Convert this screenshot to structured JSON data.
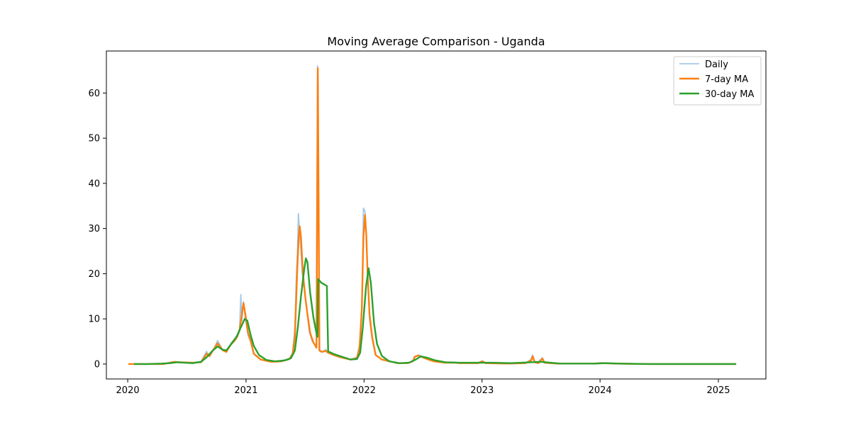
{
  "chart_data": {
    "type": "line",
    "title": "Moving Average Comparison - Uganda",
    "xlabel": "",
    "ylabel": "",
    "x_ticks": [
      "2020",
      "2021",
      "2022",
      "2023",
      "2024",
      "2025"
    ],
    "y_ticks": [
      0,
      10,
      20,
      30,
      40,
      50,
      60
    ],
    "xlim": [
      "2019-10-27",
      "2025-05-28"
    ],
    "ylim": [
      -3.3,
      69.3
    ],
    "grid": false,
    "legend_position": "top-right",
    "series": [
      {
        "name": "Daily",
        "color": "#a6c8e6",
        "points": [
          [
            "2020-01-03",
            0
          ],
          [
            "2020-04-15",
            0
          ],
          [
            "2020-05-20",
            0.5
          ],
          [
            "2020-06-10",
            0.3
          ],
          [
            "2020-07-20",
            0.3
          ],
          [
            "2020-08-15",
            0.6
          ],
          [
            "2020-09-01",
            2.8
          ],
          [
            "2020-09-10",
            1.6
          ],
          [
            "2020-09-25",
            3.6
          ],
          [
            "2020-10-05",
            5.2
          ],
          [
            "2020-10-20",
            3.2
          ],
          [
            "2020-11-01",
            2.6
          ],
          [
            "2020-11-15",
            4.6
          ],
          [
            "2020-11-28",
            5.6
          ],
          [
            "2020-12-05",
            6.6
          ],
          [
            "2020-12-12",
            7.8
          ],
          [
            "2020-12-16",
            15.4
          ],
          [
            "2020-12-19",
            9.5
          ],
          [
            "2020-12-24",
            13.8
          ],
          [
            "2020-12-30",
            10.0
          ],
          [
            "2021-01-07",
            6.4
          ],
          [
            "2021-01-15",
            5.0
          ],
          [
            "2021-01-25",
            2.2
          ],
          [
            "2021-02-15",
            1.0
          ],
          [
            "2021-03-20",
            0.5
          ],
          [
            "2021-04-20",
            0.7
          ],
          [
            "2021-05-15",
            1.2
          ],
          [
            "2021-05-25",
            2.5
          ],
          [
            "2021-06-01",
            8.0
          ],
          [
            "2021-06-05",
            18.0
          ],
          [
            "2021-06-09",
            25.0
          ],
          [
            "2021-06-12",
            33.3
          ],
          [
            "2021-06-15",
            30.0
          ],
          [
            "2021-06-18",
            27.0
          ],
          [
            "2021-06-24",
            20.0
          ],
          [
            "2021-07-01",
            16.0
          ],
          [
            "2021-07-08",
            12.0
          ],
          [
            "2021-07-16",
            7.0
          ],
          [
            "2021-07-25",
            5.0
          ],
          [
            "2021-08-06",
            3.8
          ],
          [
            "2021-08-10",
            66.0
          ],
          [
            "2021-08-13",
            40.0
          ],
          [
            "2021-08-15",
            3.0
          ],
          [
            "2021-08-22",
            2.6
          ],
          [
            "2021-09-05",
            3.2
          ],
          [
            "2021-09-12",
            2.6
          ],
          [
            "2021-09-25",
            2.2
          ],
          [
            "2021-10-20",
            1.6
          ],
          [
            "2021-11-20",
            1.0
          ],
          [
            "2021-12-10",
            1.5
          ],
          [
            "2021-12-20",
            5.0
          ],
          [
            "2021-12-26",
            14.0
          ],
          [
            "2021-12-30",
            34.5
          ],
          [
            "2022-01-04",
            33.8
          ],
          [
            "2022-01-08",
            28.0
          ],
          [
            "2022-01-12",
            20.0
          ],
          [
            "2022-01-18",
            10.0
          ],
          [
            "2022-01-25",
            6.0
          ],
          [
            "2022-02-05",
            2.0
          ],
          [
            "2022-02-25",
            1.0
          ],
          [
            "2022-04-15",
            0.2
          ],
          [
            "2022-05-15",
            0.2
          ],
          [
            "2022-06-01",
            0.6
          ],
          [
            "2022-06-05",
            1.6
          ],
          [
            "2022-06-18",
            2.0
          ],
          [
            "2022-07-01",
            1.6
          ],
          [
            "2022-07-15",
            1.1
          ],
          [
            "2022-08-05",
            0.6
          ],
          [
            "2022-09-10",
            0.3
          ],
          [
            "2022-10-10",
            0.4
          ],
          [
            "2022-10-25",
            0.2
          ],
          [
            "2022-11-10",
            0.3
          ],
          [
            "2022-12-20",
            0.3
          ],
          [
            "2023-01-01",
            0.7
          ],
          [
            "2023-01-10",
            0.2
          ],
          [
            "2023-03-20",
            0.1
          ],
          [
            "2023-05-15",
            0.2
          ],
          [
            "2023-06-01",
            1.0
          ],
          [
            "2023-06-06",
            2.0
          ],
          [
            "2023-06-12",
            0.5
          ],
          [
            "2023-06-22",
            0.3
          ],
          [
            "2023-07-06",
            1.4
          ],
          [
            "2023-07-12",
            0.4
          ],
          [
            "2023-08-20",
            0.1
          ],
          [
            "2023-12-10",
            0.1
          ],
          [
            "2024-01-05",
            0.3
          ],
          [
            "2024-02-15",
            0.1
          ],
          [
            "2024-06-01",
            0
          ],
          [
            "2025-02-25",
            0
          ]
        ]
      },
      {
        "name": "7-day MA",
        "color": "#ff7f0e",
        "points": [
          [
            "2020-01-03",
            0
          ],
          [
            "2020-04-20",
            0
          ],
          [
            "2020-05-25",
            0.5
          ],
          [
            "2020-06-10",
            0.4
          ],
          [
            "2020-07-20",
            0.3
          ],
          [
            "2020-08-15",
            0.4
          ],
          [
            "2020-09-01",
            2.3
          ],
          [
            "2020-09-10",
            1.8
          ],
          [
            "2020-09-25",
            3.5
          ],
          [
            "2020-10-05",
            4.6
          ],
          [
            "2020-10-20",
            3.1
          ],
          [
            "2020-11-01",
            2.7
          ],
          [
            "2020-11-15",
            4.3
          ],
          [
            "2020-11-28",
            5.3
          ],
          [
            "2020-12-05",
            6.1
          ],
          [
            "2020-12-12",
            7.5
          ],
          [
            "2020-12-18",
            10.5
          ],
          [
            "2020-12-24",
            13.5
          ],
          [
            "2020-12-30",
            11.0
          ],
          [
            "2021-01-07",
            7.0
          ],
          [
            "2021-01-15",
            5.2
          ],
          [
            "2021-01-25",
            2.3
          ],
          [
            "2021-02-15",
            1.0
          ],
          [
            "2021-03-20",
            0.5
          ],
          [
            "2021-04-20",
            0.6
          ],
          [
            "2021-05-15",
            1.1
          ],
          [
            "2021-05-25",
            2.2
          ],
          [
            "2021-06-01",
            6.0
          ],
          [
            "2021-06-05",
            14.0
          ],
          [
            "2021-06-09",
            22.0
          ],
          [
            "2021-06-13",
            28.0
          ],
          [
            "2021-06-16",
            30.5
          ],
          [
            "2021-06-20",
            28.0
          ],
          [
            "2021-06-26",
            20.0
          ],
          [
            "2021-07-03",
            15.0
          ],
          [
            "2021-07-10",
            11.0
          ],
          [
            "2021-07-18",
            7.0
          ],
          [
            "2021-07-27",
            5.0
          ],
          [
            "2021-08-07",
            3.6
          ],
          [
            "2021-08-11",
            65.5
          ],
          [
            "2021-08-14",
            30.0
          ],
          [
            "2021-08-16",
            3.0
          ],
          [
            "2021-08-25",
            2.7
          ],
          [
            "2021-09-05",
            2.9
          ],
          [
            "2021-09-12",
            2.5
          ],
          [
            "2021-09-25",
            2.1
          ],
          [
            "2021-10-20",
            1.5
          ],
          [
            "2021-11-20",
            1.0
          ],
          [
            "2021-12-10",
            1.3
          ],
          [
            "2021-12-18",
            3.5
          ],
          [
            "2021-12-25",
            12.0
          ],
          [
            "2021-12-30",
            28.0
          ],
          [
            "2022-01-04",
            33.0
          ],
          [
            "2022-01-08",
            28.5
          ],
          [
            "2022-01-12",
            20.0
          ],
          [
            "2022-01-18",
            11.0
          ],
          [
            "2022-01-26",
            6.0
          ],
          [
            "2022-02-06",
            2.0
          ],
          [
            "2022-02-25",
            1.0
          ],
          [
            "2022-04-15",
            0.2
          ],
          [
            "2022-05-15",
            0.2
          ],
          [
            "2022-06-01",
            0.6
          ],
          [
            "2022-06-07",
            1.6
          ],
          [
            "2022-06-18",
            1.9
          ],
          [
            "2022-07-01",
            1.5
          ],
          [
            "2022-07-15",
            1.1
          ],
          [
            "2022-08-05",
            0.6
          ],
          [
            "2022-09-10",
            0.3
          ],
          [
            "2022-10-10",
            0.3
          ],
          [
            "2022-10-25",
            0.2
          ],
          [
            "2022-11-10",
            0.2
          ],
          [
            "2022-12-20",
            0.2
          ],
          [
            "2023-01-03",
            0.6
          ],
          [
            "2023-01-12",
            0.2
          ],
          [
            "2023-03-20",
            0.1
          ],
          [
            "2023-05-15",
            0.2
          ],
          [
            "2023-06-02",
            0.8
          ],
          [
            "2023-06-07",
            1.7
          ],
          [
            "2023-06-13",
            0.4
          ],
          [
            "2023-06-24",
            0.2
          ],
          [
            "2023-07-07",
            1.2
          ],
          [
            "2023-07-13",
            0.3
          ],
          [
            "2023-08-20",
            0.1
          ],
          [
            "2023-12-10",
            0.1
          ],
          [
            "2024-01-05",
            0.2
          ],
          [
            "2024-02-15",
            0.1
          ],
          [
            "2024-06-01",
            0
          ],
          [
            "2025-02-25",
            0
          ]
        ]
      },
      {
        "name": "30-day MA",
        "color": "#2ca02c",
        "points": [
          [
            "2020-01-20",
            0
          ],
          [
            "2020-03-01",
            0
          ],
          [
            "2020-04-15",
            0.1
          ],
          [
            "2020-05-10",
            0.2
          ],
          [
            "2020-06-01",
            0.4
          ],
          [
            "2020-06-25",
            0.3
          ],
          [
            "2020-07-20",
            0.2
          ],
          [
            "2020-08-15",
            0.5
          ],
          [
            "2020-09-01",
            1.5
          ],
          [
            "2020-09-20",
            3.0
          ],
          [
            "2020-10-05",
            3.9
          ],
          [
            "2020-10-20",
            3.2
          ],
          [
            "2020-11-01",
            3.0
          ],
          [
            "2020-11-20",
            4.8
          ],
          [
            "2020-12-05",
            6.3
          ],
          [
            "2020-12-15",
            8.0
          ],
          [
            "2020-12-28",
            10.0
          ],
          [
            "2021-01-05",
            9.6
          ],
          [
            "2021-01-15",
            6.5
          ],
          [
            "2021-01-25",
            4.0
          ],
          [
            "2021-02-10",
            2.0
          ],
          [
            "2021-03-05",
            0.9
          ],
          [
            "2021-04-01",
            0.6
          ],
          [
            "2021-05-01",
            0.8
          ],
          [
            "2021-05-20",
            1.3
          ],
          [
            "2021-06-01",
            3.0
          ],
          [
            "2021-06-10",
            8.0
          ],
          [
            "2021-06-20",
            15.0
          ],
          [
            "2021-06-30",
            21.0
          ],
          [
            "2021-07-05",
            23.4
          ],
          [
            "2021-07-10",
            22.5
          ],
          [
            "2021-07-18",
            16.0
          ],
          [
            "2021-07-28",
            10.5
          ],
          [
            "2021-08-05",
            7.5
          ],
          [
            "2021-08-10",
            6.0
          ],
          [
            "2021-08-12",
            18.8
          ],
          [
            "2021-08-22",
            18.0
          ],
          [
            "2021-09-08",
            17.3
          ],
          [
            "2021-09-12",
            2.8
          ],
          [
            "2021-09-30",
            2.2
          ],
          [
            "2021-10-25",
            1.6
          ],
          [
            "2021-11-20",
            1.0
          ],
          [
            "2021-12-10",
            1.1
          ],
          [
            "2021-12-20",
            2.5
          ],
          [
            "2021-12-28",
            8.0
          ],
          [
            "2022-01-07",
            17.0
          ],
          [
            "2022-01-15",
            21.2
          ],
          [
            "2022-01-22",
            18.0
          ],
          [
            "2022-02-01",
            9.0
          ],
          [
            "2022-02-10",
            4.5
          ],
          [
            "2022-02-25",
            1.8
          ],
          [
            "2022-03-20",
            0.6
          ],
          [
            "2022-04-20",
            0.2
          ],
          [
            "2022-05-20",
            0.3
          ],
          [
            "2022-06-10",
            1.0
          ],
          [
            "2022-06-25",
            1.7
          ],
          [
            "2022-07-15",
            1.4
          ],
          [
            "2022-08-10",
            0.8
          ],
          [
            "2022-09-10",
            0.4
          ],
          [
            "2022-10-20",
            0.3
          ],
          [
            "2022-12-20",
            0.3
          ],
          [
            "2023-02-01",
            0.3
          ],
          [
            "2023-04-01",
            0.2
          ],
          [
            "2023-06-01",
            0.4
          ],
          [
            "2023-07-01",
            0.5
          ],
          [
            "2023-08-01",
            0.3
          ],
          [
            "2023-09-01",
            0.1
          ],
          [
            "2023-12-15",
            0.1
          ],
          [
            "2024-01-20",
            0.2
          ],
          [
            "2024-03-01",
            0.1
          ],
          [
            "2024-06-01",
            0
          ],
          [
            "2025-02-25",
            0
          ]
        ]
      }
    ]
  }
}
